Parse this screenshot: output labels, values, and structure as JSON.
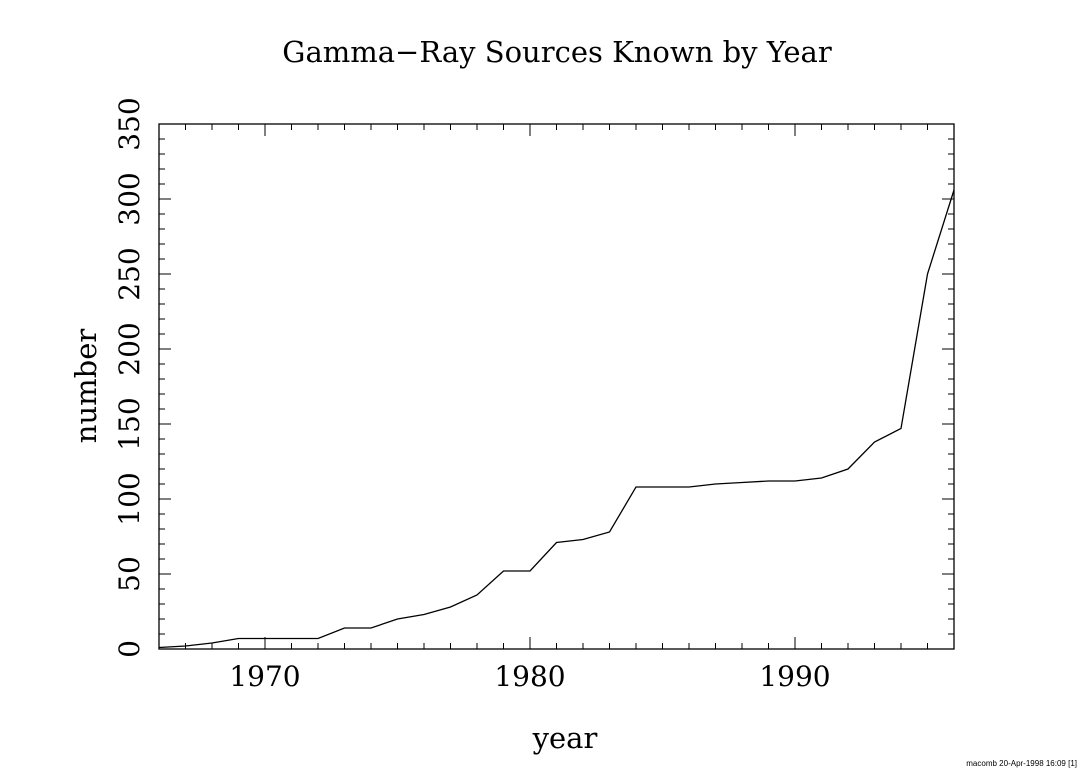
{
  "chart_data": {
    "type": "line",
    "title": "Gamma−Ray Sources Known by Year",
    "xlabel": "year",
    "ylabel": "number",
    "xlim": [
      1966,
      1996
    ],
    "ylim": [
      0,
      350
    ],
    "x_ticks": [
      1970,
      1980,
      1990
    ],
    "x_tick_labels": [
      "1970",
      "1980",
      "1990"
    ],
    "y_ticks": [
      0,
      50,
      100,
      150,
      200,
      250,
      300,
      350
    ],
    "y_tick_labels": [
      "0",
      "50",
      "100",
      "150",
      "200",
      "250",
      "300",
      "350"
    ],
    "grid": false,
    "series": [
      {
        "x": [
          1966,
          1967,
          1968,
          1969,
          1970,
          1971,
          1972,
          1973,
          1974,
          1975,
          1976,
          1977,
          1978,
          1979,
          1980,
          1981,
          1982,
          1983,
          1984,
          1985,
          1986,
          1987,
          1988,
          1989,
          1990,
          1991,
          1992,
          1993,
          1994,
          1995,
          1996
        ],
        "y": [
          1,
          2,
          4,
          7,
          7,
          7,
          7,
          14,
          14,
          20,
          23,
          28,
          36,
          52,
          52,
          71,
          73,
          78,
          108,
          108,
          108,
          110,
          111,
          112,
          112,
          114,
          120,
          138,
          147,
          250,
          306
        ]
      }
    ]
  },
  "footer": "macomb 20-Apr-1998 16:09 [1]"
}
